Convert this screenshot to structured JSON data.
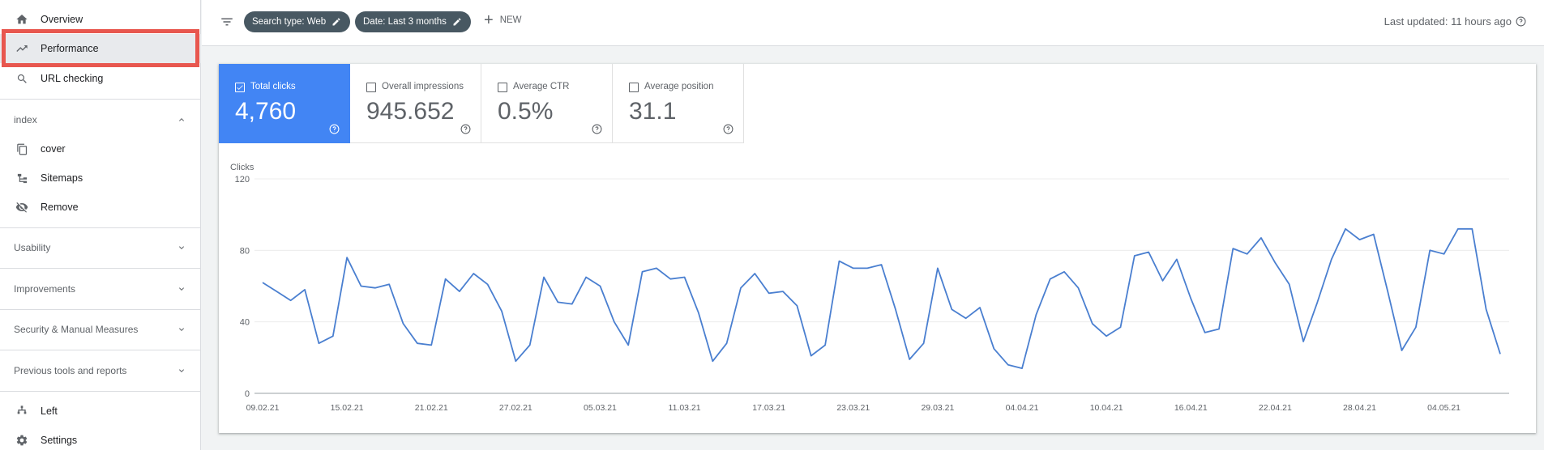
{
  "sidebar": {
    "top_items": [
      {
        "label": "Overview",
        "icon": "home-icon"
      },
      {
        "label": "Performance",
        "icon": "trending-up-icon"
      },
      {
        "label": "URL checking",
        "icon": "search-icon"
      }
    ],
    "index_section": "index",
    "index_items": [
      {
        "label": "cover",
        "icon": "copy-icon"
      },
      {
        "label": "Sitemaps",
        "icon": "sitemap-icon"
      },
      {
        "label": "Remove",
        "icon": "eye-off-icon"
      }
    ],
    "sections": [
      "Usability",
      "Improvements",
      "Security & Manual Measures",
      "Previous tools and reports"
    ],
    "bottom_items": [
      {
        "label": "Left",
        "icon": "links-icon"
      },
      {
        "label": "Settings",
        "icon": "gear-icon"
      }
    ]
  },
  "topbar": {
    "chips": [
      "Search type: Web",
      "Date: Last 3 months"
    ],
    "new_label": "NEW",
    "last_updated": "Last updated: 11 hours ago"
  },
  "metrics": [
    {
      "label": "Total clicks",
      "value": "4,760",
      "active": true
    },
    {
      "label": "Overall impressions",
      "value": "945.652",
      "active": false
    },
    {
      "label": "Average CTR",
      "value": "0.5%",
      "active": false
    },
    {
      "label": "Average position",
      "value": "31.1",
      "active": false
    }
  ],
  "colors": {
    "accent": "#4285f4",
    "chip": "#485862",
    "highlight": "#e8574f"
  },
  "chart_data": {
    "type": "line",
    "ylabel": "Clicks",
    "ylim": [
      0,
      120
    ],
    "yticks": [
      "0",
      "40",
      "80",
      "120"
    ],
    "xticks": [
      "09.02.21",
      "15.02.21",
      "21.02.21",
      "27.02.21",
      "05.03.21",
      "11.03.21",
      "17.03.21",
      "23.03.21",
      "29.03.21",
      "04.04.21",
      "10.04.21",
      "16.04.21",
      "22.04.21",
      "28.04.21",
      "04.05.21"
    ],
    "series": [
      {
        "values": [
          62,
          57,
          52,
          58,
          28,
          32,
          76,
          60,
          59,
          61,
          39,
          28,
          27,
          64,
          57,
          67,
          61,
          46,
          18,
          27,
          65,
          51,
          50,
          65,
          60,
          40,
          27,
          68,
          70,
          64,
          65,
          45,
          18,
          28,
          59,
          67,
          56,
          57,
          49,
          21,
          27,
          74,
          70,
          70,
          72,
          47,
          19,
          28,
          70,
          47,
          42,
          48,
          25,
          16,
          14,
          44,
          64,
          68,
          59,
          39,
          32,
          37,
          77,
          79,
          63,
          75,
          53,
          34,
          36,
          81,
          78,
          87,
          73,
          61,
          29,
          51,
          75,
          92,
          86,
          89,
          57,
          24,
          37,
          80,
          78,
          92,
          92,
          47,
          22
        ]
      }
    ],
    "grid": true
  }
}
